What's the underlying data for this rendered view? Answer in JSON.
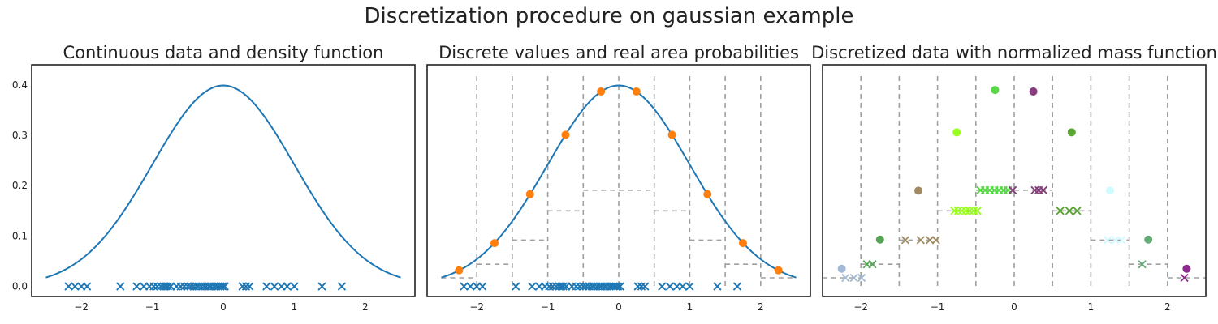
{
  "title": "Discretization procedure on gaussian example",
  "colors": {
    "curve": "#1f77b4",
    "points": "#ff7f0e",
    "dashed": "#a0a0a0",
    "frame": "#222222"
  },
  "chart_data": [
    {
      "type": "line",
      "title": "Continuous data and density function",
      "xlim": [
        -2.7,
        2.7
      ],
      "ylim": [
        -0.02,
        0.44
      ],
      "xticks": [
        -2,
        -1,
        0,
        1,
        2
      ],
      "yticks": [
        0.0,
        0.1,
        0.2,
        0.3,
        0.4
      ],
      "grid": false,
      "density": {
        "function": "standard normal pdf",
        "x_range": [
          -2.5,
          2.5
        ]
      },
      "samples_marker": "x",
      "samples_y": 0,
      "samples": [
        -2.18,
        -2.09,
        -2.0,
        -1.92,
        -1.45,
        -1.22,
        -1.12,
        -1.04,
        -0.98,
        -0.93,
        -0.88,
        -0.84,
        -0.81,
        -0.78,
        -0.74,
        -0.66,
        -0.6,
        -0.55,
        -0.5,
        -0.46,
        -0.42,
        -0.38,
        -0.35,
        -0.31,
        -0.27,
        -0.24,
        -0.2,
        -0.17,
        -0.13,
        -0.1,
        -0.07,
        -0.04,
        -0.01,
        0.02,
        0.27,
        0.32,
        0.37,
        0.61,
        0.72,
        0.82,
        0.9,
        1.0,
        1.39,
        1.67
      ]
    },
    {
      "type": "line",
      "title": "Discrete values and real area probabilities",
      "xlim": [
        -2.7,
        2.7
      ],
      "ylim": [
        -0.02,
        0.44
      ],
      "xticks": [
        -2,
        -1,
        0,
        1,
        2
      ],
      "grid": false,
      "density": {
        "function": "standard normal pdf",
        "x_range": [
          -2.5,
          2.5
        ]
      },
      "bin_edges": [
        -2.0,
        -1.5,
        -1.0,
        -0.5,
        0.0,
        0.5,
        1.0,
        1.5,
        2.0
      ],
      "discrete_points": {
        "x": [
          -2.25,
          -1.75,
          -1.25,
          -0.75,
          -0.25,
          0.25,
          0.75,
          1.25,
          1.75,
          2.25
        ],
        "y": [
          0.032,
          0.086,
          0.183,
          0.301,
          0.387,
          0.387,
          0.301,
          0.183,
          0.086,
          0.032
        ]
      },
      "area_probabilities": {
        "bins": [
          [
            -2.5,
            -2.0
          ],
          [
            -2.0,
            -1.5
          ],
          [
            -1.5,
            -1.0
          ],
          [
            -1.0,
            -0.5
          ],
          [
            -0.5,
            0.0
          ],
          [
            0.0,
            0.5
          ],
          [
            0.5,
            1.0
          ],
          [
            1.0,
            1.5
          ],
          [
            1.5,
            2.0
          ],
          [
            2.0,
            2.5
          ]
        ],
        "values": [
          0.017,
          0.044,
          0.092,
          0.15,
          0.191,
          0.191,
          0.15,
          0.092,
          0.044,
          0.017
        ]
      },
      "samples_marker": "x",
      "samples_y": 0,
      "samples": [
        -2.18,
        -2.09,
        -2.0,
        -1.92,
        -1.45,
        -1.22,
        -1.12,
        -1.04,
        -0.98,
        -0.93,
        -0.88,
        -0.84,
        -0.81,
        -0.78,
        -0.74,
        -0.66,
        -0.6,
        -0.55,
        -0.5,
        -0.46,
        -0.42,
        -0.38,
        -0.35,
        -0.31,
        -0.27,
        -0.24,
        -0.2,
        -0.17,
        -0.13,
        -0.1,
        -0.07,
        -0.04,
        -0.01,
        0.02,
        0.27,
        0.32,
        0.37,
        0.61,
        0.72,
        0.82,
        0.9,
        1.0,
        1.39,
        1.67
      ]
    },
    {
      "type": "scatter",
      "title": "Discretized data with normalized mass function",
      "xlim": [
        -2.5,
        2.5
      ],
      "ylim": [
        -0.02,
        0.44
      ],
      "xticks": [
        -2,
        -1,
        0,
        1,
        2
      ],
      "grid": false,
      "bin_edges": [
        -2.0,
        -1.5,
        -1.0,
        -0.5,
        0.0,
        0.5,
        1.0,
        1.5,
        2.0
      ],
      "mass_points": {
        "x": [
          -2.25,
          -1.75,
          -1.25,
          -0.75,
          -0.25,
          0.25,
          0.75,
          1.25,
          1.75,
          2.25
        ],
        "y": [
          0.035,
          0.093,
          0.19,
          0.306,
          0.39,
          0.387,
          0.306,
          0.19,
          0.093,
          0.035
        ],
        "colors": [
          "#a3b8d3",
          "#55a555",
          "#a08a60",
          "#9aff20",
          "#55d843",
          "#883e7e",
          "#5aa632",
          "#cffaff",
          "#66aa77",
          "#8e2a8e"
        ]
      },
      "bin_levels": {
        "bins": [
          [
            -2.5,
            -2.0
          ],
          [
            -2.0,
            -1.5
          ],
          [
            -1.5,
            -1.0
          ],
          [
            -1.0,
            -0.5
          ],
          [
            -0.5,
            0.0
          ],
          [
            0.0,
            0.5
          ],
          [
            0.5,
            1.0
          ],
          [
            1.0,
            1.5
          ],
          [
            1.5,
            2.0
          ],
          [
            2.0,
            2.5
          ]
        ],
        "values": [
          0.017,
          0.044,
          0.092,
          0.15,
          0.191,
          0.191,
          0.15,
          0.092,
          0.044,
          0.017
        ]
      },
      "samples_marker": "x",
      "samples": {
        "x": [
          -2.2,
          -2.09,
          -1.99,
          -1.92,
          -1.85,
          -1.42,
          -1.22,
          -1.1,
          -1.02,
          -0.78,
          -0.73,
          -0.68,
          -0.63,
          -0.58,
          -0.53,
          -0.48,
          -0.44,
          -0.38,
          -0.32,
          -0.26,
          -0.2,
          -0.14,
          -0.08,
          -0.02,
          0.27,
          0.32,
          0.38,
          0.6,
          0.72,
          0.82,
          1.22,
          1.32,
          1.4,
          1.67,
          2.22
        ],
        "y": [
          0.017,
          0.017,
          0.017,
          0.044,
          0.044,
          0.092,
          0.092,
          0.092,
          0.092,
          0.15,
          0.15,
          0.15,
          0.15,
          0.15,
          0.15,
          0.15,
          0.191,
          0.191,
          0.191,
          0.191,
          0.191,
          0.191,
          0.191,
          0.191,
          0.191,
          0.191,
          0.191,
          0.15,
          0.15,
          0.15,
          0.092,
          0.092,
          0.092,
          0.044,
          0.017
        ],
        "colors": [
          "#a3b8d3",
          "#a3b8d3",
          "#a3b8d3",
          "#55a555",
          "#55a555",
          "#a08a60",
          "#a08a60",
          "#a08a60",
          "#a08a60",
          "#9aff20",
          "#9aff20",
          "#9aff20",
          "#9aff20",
          "#9aff20",
          "#9aff20",
          "#9aff20",
          "#55d843",
          "#55d843",
          "#55d843",
          "#55d843",
          "#55d843",
          "#55d843",
          "#55d843",
          "#883e7e",
          "#883e7e",
          "#883e7e",
          "#883e7e",
          "#5aa632",
          "#5aa632",
          "#5aa632",
          "#cffaff",
          "#cffaff",
          "#cffaff",
          "#66aa77",
          "#8e2a8e"
        ]
      }
    }
  ]
}
